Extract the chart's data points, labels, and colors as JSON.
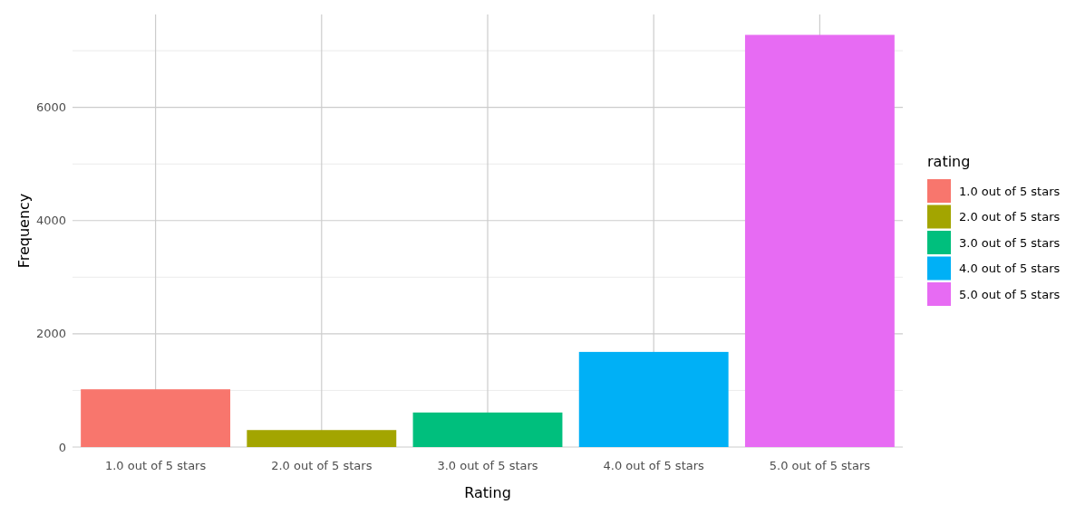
{
  "chart_data": {
    "type": "bar",
    "xlabel": "Rating",
    "ylabel": "Frequency",
    "legend_title": "rating",
    "categories": [
      "1.0 out of 5 stars",
      "2.0 out of 5 stars",
      "3.0 out of 5 stars",
      "4.0 out of 5 stars",
      "5.0 out of 5 stars"
    ],
    "series": [
      {
        "name": "1.0 out of 5 stars",
        "color": "#f8766d",
        "values": [
          1020,
          null,
          null,
          null,
          null
        ]
      },
      {
        "name": "2.0 out of 5 stars",
        "color": "#a3a500",
        "values": [
          null,
          300,
          null,
          null,
          null
        ]
      },
      {
        "name": "3.0 out of 5 stars",
        "color": "#00bf7d",
        "values": [
          null,
          null,
          610,
          null,
          null
        ]
      },
      {
        "name": "4.0 out of 5 stars",
        "color": "#00b0f6",
        "values": [
          null,
          null,
          null,
          1680,
          null
        ]
      },
      {
        "name": "5.0 out of 5 stars",
        "color": "#e76bf3",
        "values": [
          null,
          null,
          null,
          null,
          7280
        ]
      }
    ],
    "ylim": [
      0,
      7640
    ],
    "yticks": [
      0,
      2000,
      4000,
      6000
    ],
    "grid": true,
    "legend": "right"
  }
}
